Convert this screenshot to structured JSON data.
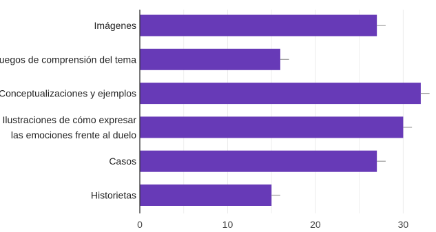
{
  "chart_data": {
    "type": "bar",
    "orientation": "horizontal",
    "categories": [
      "Imágenes",
      "Juegos de comprensión del tema",
      "Conceptualizaciones y ejemplos",
      "Ilustraciones de cómo expresar las emociones frente al duelo",
      "Casos",
      "Historietas"
    ],
    "category_lines": [
      [
        "Imágenes"
      ],
      [
        "Juegos de comprensión del tema"
      ],
      [
        "Conceptualizaciones y ejemplos"
      ],
      [
        "Ilustraciones de cómo expresar",
        "las emociones frente al duelo"
      ],
      [
        "Casos"
      ],
      [
        "Historietas"
      ]
    ],
    "values": [
      27,
      16,
      32,
      30,
      27,
      15
    ],
    "error": [
      1,
      1,
      1,
      1,
      1,
      1
    ],
    "xlim": [
      0,
      33.5
    ],
    "xticks": [
      "0",
      "10",
      "20",
      "30"
    ],
    "grid": "vertical",
    "title": "",
    "xlabel": "",
    "ylabel": "",
    "colors": {
      "bar": "#673ab7",
      "errorbar": "#999999",
      "grid": "#ebebeb",
      "axis": "#333333"
    }
  }
}
